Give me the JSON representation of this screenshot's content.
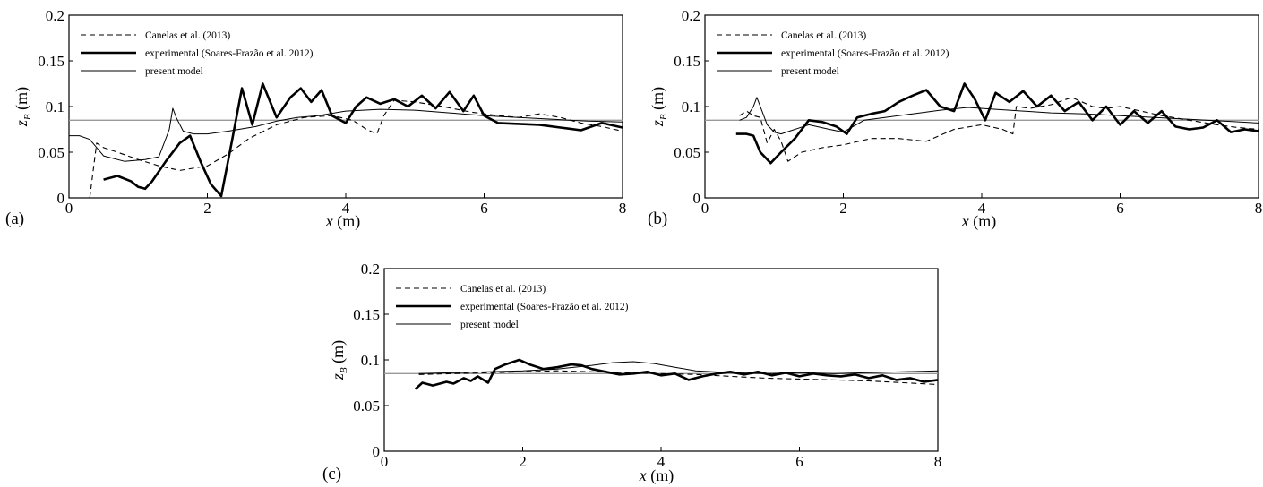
{
  "figure": {
    "ref_line_value": 0.085,
    "colors": {
      "line": "#000000",
      "ref_line": "#999999",
      "frame": "#000000"
    },
    "legend": [
      {
        "label": "Canelas et al. (2013)",
        "style": "dashed"
      },
      {
        "label": "experimental (Soares-Frazão et al. 2012)",
        "style": "thick"
      },
      {
        "label": "present model",
        "style": "thin"
      }
    ]
  },
  "chart_data": [
    {
      "type": "line",
      "panel_label": "(a)",
      "xlabel": "x",
      "xlabel_unit": "(m)",
      "ylabel": "z",
      "ylabel_sub": "B",
      "ylabel_unit": "(m)",
      "xlim": [
        0,
        8
      ],
      "ylim": [
        0,
        0.2
      ],
      "xticks": [
        "0",
        "2",
        "4",
        "6",
        "8"
      ],
      "yticks": [
        "0",
        "0.05",
        "0.1",
        "0.15",
        "0.2"
      ],
      "series": [
        {
          "name": "Canelas et al. (2013)",
          "style": "dashed",
          "x": [
            0.3,
            0.4,
            0.5,
            0.7,
            1.0,
            1.3,
            1.6,
            2.0,
            2.3,
            2.6,
            3.0,
            3.4,
            3.8,
            4.1,
            4.3,
            4.45,
            4.55,
            4.7,
            5.0,
            5.4,
            5.8,
            6.2,
            6.5,
            6.8,
            7.1,
            7.4,
            7.7,
            8.0
          ],
          "y": [
            0.0,
            0.06,
            0.055,
            0.05,
            0.042,
            0.035,
            0.03,
            0.035,
            0.048,
            0.065,
            0.08,
            0.088,
            0.09,
            0.085,
            0.075,
            0.07,
            0.09,
            0.107,
            0.105,
            0.1,
            0.094,
            0.09,
            0.088,
            0.092,
            0.088,
            0.082,
            0.078,
            0.073
          ]
        },
        {
          "name": "experimental (Soares-Frazão et al. 2012)",
          "style": "thick",
          "x": [
            0.5,
            0.7,
            0.9,
            1.0,
            1.1,
            1.2,
            1.4,
            1.6,
            1.75,
            1.9,
            2.05,
            2.2,
            2.35,
            2.5,
            2.65,
            2.8,
            3.0,
            3.2,
            3.35,
            3.5,
            3.65,
            3.8,
            4.0,
            4.15,
            4.3,
            4.5,
            4.7,
            4.9,
            5.1,
            5.3,
            5.5,
            5.7,
            5.85,
            6.0,
            6.2,
            6.5,
            6.8,
            7.1,
            7.4,
            7.7,
            8.0
          ],
          "y": [
            0.02,
            0.024,
            0.018,
            0.012,
            0.01,
            0.018,
            0.04,
            0.06,
            0.068,
            0.04,
            0.015,
            0.002,
            0.06,
            0.12,
            0.08,
            0.125,
            0.088,
            0.11,
            0.12,
            0.105,
            0.118,
            0.09,
            0.082,
            0.1,
            0.11,
            0.103,
            0.108,
            0.1,
            0.112,
            0.098,
            0.116,
            0.095,
            0.112,
            0.09,
            0.082,
            0.081,
            0.08,
            0.077,
            0.074,
            0.082,
            0.077
          ]
        },
        {
          "name": "present model",
          "style": "thin",
          "x": [
            0.0,
            0.15,
            0.3,
            0.5,
            0.8,
            1.1,
            1.3,
            1.45,
            1.5,
            1.55,
            1.65,
            1.8,
            2.0,
            2.3,
            2.7,
            3.0,
            3.3,
            3.6,
            4.0,
            4.5,
            5.0,
            5.5,
            6.0,
            6.5,
            7.0,
            7.5,
            8.0
          ],
          "y": [
            0.068,
            0.068,
            0.064,
            0.046,
            0.04,
            0.042,
            0.045,
            0.075,
            0.098,
            0.088,
            0.073,
            0.07,
            0.07,
            0.073,
            0.078,
            0.084,
            0.088,
            0.09,
            0.095,
            0.097,
            0.096,
            0.093,
            0.09,
            0.088,
            0.086,
            0.084,
            0.083
          ]
        }
      ]
    },
    {
      "type": "line",
      "panel_label": "(b)",
      "xlabel": "x",
      "xlabel_unit": "(m)",
      "ylabel": "z",
      "ylabel_sub": "B",
      "ylabel_unit": "(m)",
      "xlim": [
        0,
        8
      ],
      "ylim": [
        0,
        0.2
      ],
      "xticks": [
        "0",
        "2",
        "4",
        "6",
        "8"
      ],
      "yticks": [
        "0",
        "0.05",
        "0.1",
        "0.15",
        "0.2"
      ],
      "series": [
        {
          "name": "Canelas et al. (2013)",
          "style": "dashed",
          "x": [
            0.5,
            0.6,
            0.7,
            0.8,
            0.9,
            1.0,
            1.1,
            1.2,
            1.4,
            1.7,
            2.0,
            2.4,
            2.8,
            3.2,
            3.6,
            4.0,
            4.3,
            4.45,
            4.5,
            4.7,
            5.0,
            5.3,
            5.6,
            5.8,
            6.0,
            6.3,
            6.6,
            7.0,
            7.4,
            7.7,
            8.0
          ],
          "y": [
            0.09,
            0.095,
            0.09,
            0.088,
            0.06,
            0.075,
            0.062,
            0.04,
            0.05,
            0.055,
            0.058,
            0.065,
            0.065,
            0.062,
            0.075,
            0.08,
            0.075,
            0.07,
            0.1,
            0.098,
            0.102,
            0.11,
            0.1,
            0.098,
            0.1,
            0.095,
            0.09,
            0.085,
            0.08,
            0.077,
            0.075
          ]
        },
        {
          "name": "experimental (Soares-Frazão et al. 2012)",
          "style": "thick",
          "x": [
            0.45,
            0.6,
            0.7,
            0.8,
            0.95,
            1.1,
            1.3,
            1.5,
            1.7,
            1.9,
            2.05,
            2.2,
            2.4,
            2.6,
            2.8,
            3.0,
            3.2,
            3.4,
            3.6,
            3.75,
            3.9,
            4.05,
            4.2,
            4.4,
            4.6,
            4.8,
            5.0,
            5.2,
            5.4,
            5.6,
            5.8,
            6.0,
            6.2,
            6.4,
            6.6,
            6.8,
            7.0,
            7.2,
            7.4,
            7.6,
            7.8,
            8.0
          ],
          "y": [
            0.07,
            0.07,
            0.068,
            0.05,
            0.038,
            0.05,
            0.065,
            0.085,
            0.083,
            0.078,
            0.07,
            0.088,
            0.092,
            0.095,
            0.105,
            0.112,
            0.118,
            0.1,
            0.095,
            0.125,
            0.108,
            0.085,
            0.115,
            0.105,
            0.117,
            0.1,
            0.112,
            0.095,
            0.105,
            0.085,
            0.1,
            0.08,
            0.095,
            0.082,
            0.095,
            0.078,
            0.075,
            0.077,
            0.085,
            0.072,
            0.075,
            0.073
          ]
        },
        {
          "name": "present model",
          "style": "thin",
          "x": [
            0.5,
            0.6,
            0.7,
            0.75,
            0.8,
            0.9,
            1.0,
            1.1,
            1.3,
            1.5,
            1.8,
            2.0,
            2.3,
            2.6,
            3.0,
            3.4,
            3.8,
            4.2,
            4.6,
            5.0,
            5.5,
            6.0,
            6.5,
            7.0,
            7.5,
            8.0
          ],
          "y": [
            0.085,
            0.088,
            0.1,
            0.11,
            0.1,
            0.08,
            0.072,
            0.07,
            0.075,
            0.08,
            0.075,
            0.072,
            0.085,
            0.088,
            0.092,
            0.096,
            0.099,
            0.097,
            0.095,
            0.093,
            0.092,
            0.09,
            0.088,
            0.086,
            0.084,
            0.082
          ]
        }
      ]
    },
    {
      "type": "line",
      "panel_label": "(c)",
      "xlabel": "x",
      "xlabel_unit": "(m)",
      "ylabel": "z",
      "ylabel_sub": "B",
      "ylabel_unit": "(m)",
      "xlim": [
        0,
        8
      ],
      "ylim": [
        0,
        0.2
      ],
      "xticks": [
        "0",
        "2",
        "4",
        "6",
        "8"
      ],
      "yticks": [
        "0",
        "0.05",
        "0.1",
        "0.15",
        "0.2"
      ],
      "series": [
        {
          "name": "Canelas et al. (2013)",
          "style": "dashed",
          "x": [
            0.5,
            1.0,
            1.5,
            2.0,
            2.5,
            3.0,
            3.5,
            4.0,
            4.5,
            5.0,
            5.5,
            6.0,
            6.5,
            7.0,
            7.5,
            8.0
          ],
          "y": [
            0.084,
            0.085,
            0.086,
            0.087,
            0.088,
            0.087,
            0.086,
            0.085,
            0.084,
            0.082,
            0.08,
            0.079,
            0.078,
            0.077,
            0.075,
            0.073
          ]
        },
        {
          "name": "experimental (Soares-Frazão et al. 2012)",
          "style": "thick",
          "x": [
            0.45,
            0.55,
            0.7,
            0.9,
            1.0,
            1.15,
            1.25,
            1.35,
            1.5,
            1.6,
            1.75,
            1.95,
            2.1,
            2.3,
            2.5,
            2.7,
            2.85,
            3.0,
            3.2,
            3.4,
            3.6,
            3.8,
            4.0,
            4.2,
            4.4,
            4.6,
            4.8,
            5.0,
            5.2,
            5.4,
            5.6,
            5.8,
            6.0,
            6.2,
            6.4,
            6.6,
            6.8,
            7.0,
            7.2,
            7.4,
            7.6,
            7.8,
            8.0
          ],
          "y": [
            0.068,
            0.075,
            0.072,
            0.076,
            0.074,
            0.08,
            0.077,
            0.082,
            0.075,
            0.09,
            0.095,
            0.1,
            0.095,
            0.09,
            0.092,
            0.095,
            0.094,
            0.09,
            0.087,
            0.084,
            0.085,
            0.087,
            0.083,
            0.085,
            0.078,
            0.082,
            0.085,
            0.087,
            0.084,
            0.087,
            0.083,
            0.086,
            0.082,
            0.085,
            0.083,
            0.082,
            0.084,
            0.08,
            0.083,
            0.078,
            0.08,
            0.076,
            0.078
          ]
        },
        {
          "name": "present model",
          "style": "thin",
          "x": [
            0.5,
            1.0,
            1.5,
            2.0,
            2.5,
            3.0,
            3.3,
            3.6,
            3.9,
            4.2,
            4.5,
            5.0,
            5.5,
            6.0,
            6.5,
            7.0,
            7.5,
            8.0
          ],
          "y": [
            0.085,
            0.086,
            0.087,
            0.088,
            0.09,
            0.094,
            0.097,
            0.098,
            0.096,
            0.092,
            0.088,
            0.086,
            0.085,
            0.086,
            0.085,
            0.086,
            0.087,
            0.088
          ]
        }
      ]
    }
  ]
}
